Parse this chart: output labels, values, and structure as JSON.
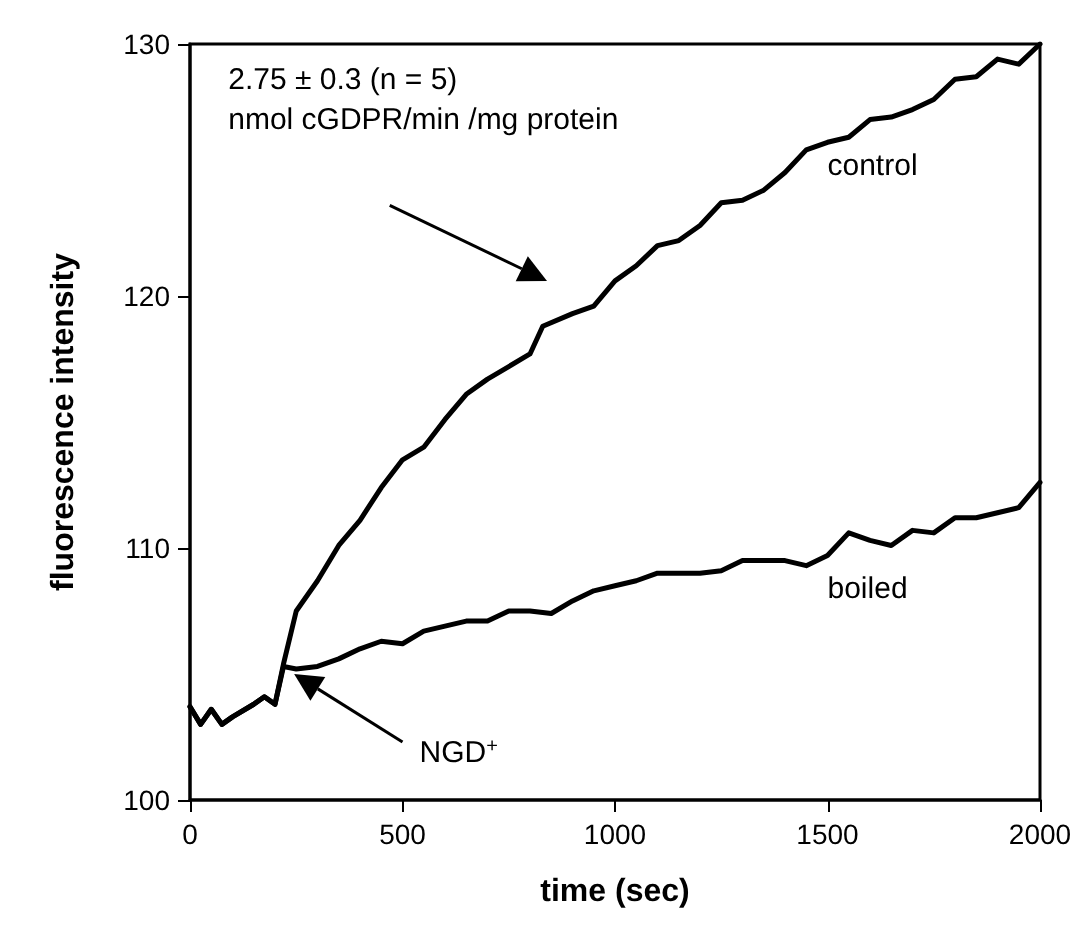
{
  "chart_data": {
    "type": "line",
    "xlabel": "time (sec)",
    "ylabel": "fluorescence intensity",
    "annotations": [
      "2.75 ± 0.3 (n = 5)\nnmol cGDPR/min /mg protein",
      "NGD$^{+}$"
    ],
    "xlim": [
      0,
      2000
    ],
    "xticks": [
      0,
      500,
      1000,
      1500,
      2000
    ],
    "ylim": [
      100,
      130
    ],
    "yticks": [
      100,
      110,
      120,
      130
    ],
    "grid": false,
    "legend": false,
    "marker": "none",
    "line_style": "solid",
    "series": [
      {
        "name": "control",
        "color": "#000000",
        "x": [
          0,
          25,
          50,
          75,
          100,
          150,
          175,
          200,
          220,
          250,
          300,
          350,
          400,
          450,
          500,
          550,
          600,
          650,
          700,
          750,
          800,
          830,
          900,
          950,
          1000,
          1050,
          1100,
          1150,
          1200,
          1250,
          1300,
          1350,
          1400,
          1450,
          1500,
          1550,
          1600,
          1650,
          1700,
          1750,
          1800,
          1850,
          1900,
          1950,
          2000
        ],
        "values": [
          103.7,
          103.0,
          103.6,
          103.0,
          103.3,
          103.8,
          104.1,
          103.8,
          105.4,
          107.5,
          108.7,
          110.1,
          111.1,
          112.4,
          113.5,
          114.0,
          115.1,
          116.1,
          116.7,
          117.2,
          117.7,
          118.8,
          119.3,
          119.6,
          120.6,
          121.2,
          122.0,
          122.2,
          122.8,
          123.7,
          123.8,
          124.2,
          124.9,
          125.8,
          126.1,
          126.3,
          127.0,
          127.1,
          127.4,
          127.8,
          128.6,
          128.7,
          129.4,
          129.2,
          130.0
        ]
      },
      {
        "name": "boiled",
        "color": "#000000",
        "x": [
          0,
          25,
          50,
          75,
          100,
          150,
          175,
          200,
          220,
          250,
          300,
          350,
          400,
          450,
          500,
          550,
          600,
          650,
          700,
          750,
          800,
          850,
          900,
          950,
          1000,
          1050,
          1100,
          1150,
          1200,
          1250,
          1300,
          1350,
          1400,
          1450,
          1500,
          1550,
          1600,
          1650,
          1700,
          1750,
          1800,
          1850,
          1900,
          1950,
          2000
        ],
        "values": [
          103.7,
          103.0,
          103.6,
          103.0,
          103.3,
          103.8,
          104.1,
          103.8,
          105.3,
          105.2,
          105.3,
          105.6,
          106.0,
          106.3,
          106.2,
          106.7,
          106.9,
          107.1,
          107.1,
          107.5,
          107.5,
          107.4,
          107.9,
          108.3,
          108.5,
          108.7,
          109.0,
          109.0,
          109.0,
          109.1,
          109.5,
          109.5,
          109.5,
          109.3,
          109.7,
          110.6,
          110.3,
          110.1,
          110.7,
          110.6,
          111.2,
          111.2,
          111.4,
          111.6,
          112.6
        ]
      }
    ]
  }
}
